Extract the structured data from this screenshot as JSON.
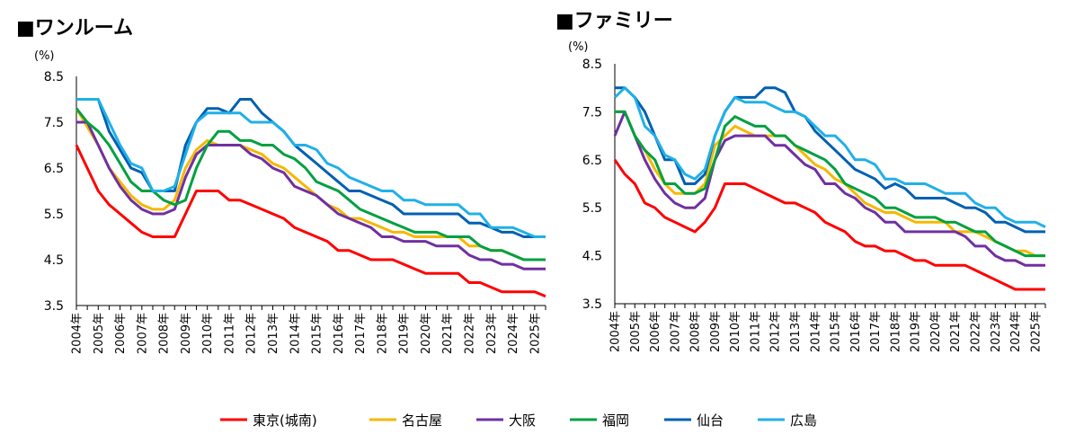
{
  "chart_data": [
    {
      "type": "line",
      "title": "■ワンルーム",
      "ylabel": "(%)",
      "ylim": [
        3.5,
        8.5
      ],
      "yticks": [
        "8.5",
        "7.5",
        "6.5",
        "5.5",
        "4.5",
        "3.5"
      ],
      "x_labels": [
        "2004年",
        "2005年",
        "2006年",
        "2007年",
        "2008年",
        "2009年",
        "2010年",
        "2011年",
        "2012年",
        "2013年",
        "2014年",
        "2015年",
        "2016年",
        "2017年",
        "2018年",
        "2019年",
        "2020年",
        "2021年",
        "2022年",
        "2023年",
        "2024年",
        "2025年"
      ],
      "x_start": 2004,
      "points_per_year": 2,
      "series": [
        {
          "name": "東京(城南)",
          "color": "#ff0000",
          "values": [
            7.0,
            6.5,
            6.0,
            5.7,
            5.5,
            5.3,
            5.1,
            5.0,
            5.0,
            5.0,
            5.5,
            6.0,
            6.0,
            6.0,
            5.8,
            5.8,
            5.7,
            5.6,
            5.5,
            5.4,
            5.2,
            5.1,
            5.0,
            4.9,
            4.7,
            4.7,
            4.6,
            4.5,
            4.5,
            4.5,
            4.4,
            4.3,
            4.2,
            4.2,
            4.2,
            4.2,
            4.0,
            4.0,
            3.9,
            3.8,
            3.8,
            3.8,
            3.8,
            3.7
          ]
        },
        {
          "name": "名古屋",
          "color": "#f5b800",
          "values": [
            7.8,
            7.4,
            7.0,
            6.5,
            6.2,
            5.9,
            5.7,
            5.6,
            5.6,
            5.8,
            6.5,
            6.9,
            7.1,
            7.0,
            7.0,
            7.0,
            6.9,
            6.8,
            6.6,
            6.5,
            6.3,
            6.1,
            5.9,
            5.7,
            5.6,
            5.4,
            5.4,
            5.3,
            5.2,
            5.1,
            5.1,
            5.0,
            5.0,
            5.0,
            5.0,
            5.0,
            4.8,
            4.8,
            4.7,
            4.7,
            4.6,
            4.5,
            4.5,
            4.5
          ]
        },
        {
          "name": "大阪",
          "color": "#7030a0",
          "values": [
            7.5,
            7.5,
            7.0,
            6.5,
            6.1,
            5.8,
            5.6,
            5.5,
            5.5,
            5.6,
            6.3,
            6.8,
            7.0,
            7.0,
            7.0,
            7.0,
            6.8,
            6.7,
            6.5,
            6.4,
            6.1,
            6.0,
            5.9,
            5.7,
            5.5,
            5.4,
            5.3,
            5.2,
            5.0,
            5.0,
            4.9,
            4.9,
            4.9,
            4.8,
            4.8,
            4.8,
            4.6,
            4.5,
            4.5,
            4.4,
            4.4,
            4.3,
            4.3,
            4.3
          ]
        },
        {
          "name": "福岡",
          "color": "#00a040",
          "values": [
            7.8,
            7.5,
            7.3,
            7.0,
            6.6,
            6.2,
            6.0,
            6.0,
            5.8,
            5.7,
            5.8,
            6.5,
            7.0,
            7.3,
            7.3,
            7.1,
            7.1,
            7.0,
            7.0,
            6.8,
            6.7,
            6.5,
            6.2,
            6.1,
            6.0,
            5.8,
            5.6,
            5.5,
            5.4,
            5.3,
            5.2,
            5.1,
            5.1,
            5.1,
            5.0,
            5.0,
            5.0,
            4.8,
            4.7,
            4.7,
            4.6,
            4.5,
            4.5,
            4.5
          ]
        },
        {
          "name": "仙台",
          "color": "#0060b0",
          "values": [
            8.0,
            8.0,
            8.0,
            7.3,
            6.9,
            6.5,
            6.4,
            6.0,
            6.0,
            6.0,
            7.0,
            7.5,
            7.8,
            7.8,
            7.7,
            8.0,
            8.0,
            7.7,
            7.5,
            7.3,
            7.0,
            6.8,
            6.6,
            6.4,
            6.2,
            6.0,
            6.0,
            5.9,
            5.8,
            5.7,
            5.5,
            5.5,
            5.5,
            5.5,
            5.5,
            5.5,
            5.3,
            5.3,
            5.2,
            5.1,
            5.1,
            5.0,
            5.0,
            5.0
          ]
        },
        {
          "name": "広島",
          "color": "#20b0e8",
          "values": [
            8.0,
            8.0,
            8.0,
            7.5,
            7.0,
            6.6,
            6.5,
            6.0,
            6.0,
            6.1,
            6.8,
            7.5,
            7.7,
            7.7,
            7.7,
            7.7,
            7.5,
            7.5,
            7.5,
            7.3,
            7.0,
            7.0,
            6.9,
            6.6,
            6.5,
            6.3,
            6.2,
            6.1,
            6.0,
            6.0,
            5.8,
            5.8,
            5.7,
            5.7,
            5.7,
            5.7,
            5.5,
            5.5,
            5.2,
            5.2,
            5.2,
            5.1,
            5.0,
            5.0
          ]
        }
      ]
    },
    {
      "type": "line",
      "title": "■ファミリー",
      "ylabel": "(%)",
      "ylim": [
        3.5,
        8.5
      ],
      "yticks": [
        "8.5",
        "7.5",
        "6.5",
        "5.5",
        "4.5",
        "3.5"
      ],
      "x_labels": [
        "2004年",
        "2005年",
        "2006年",
        "2007年",
        "2008年",
        "2009年",
        "2010年",
        "2011年",
        "2012年",
        "2013年",
        "2014年",
        "2015年",
        "2016年",
        "2017年",
        "2018年",
        "2019年",
        "2020年",
        "2021年",
        "2022年",
        "2023年",
        "2024年",
        "2025年"
      ],
      "x_start": 2004,
      "points_per_year": 2,
      "series": [
        {
          "name": "東京(城南)",
          "color": "#ff0000",
          "values": [
            6.5,
            6.2,
            6.0,
            5.6,
            5.5,
            5.3,
            5.2,
            5.1,
            5.0,
            5.2,
            5.5,
            6.0,
            6.0,
            6.0,
            5.9,
            5.8,
            5.7,
            5.6,
            5.6,
            5.5,
            5.4,
            5.2,
            5.1,
            5.0,
            4.8,
            4.7,
            4.7,
            4.6,
            4.6,
            4.5,
            4.4,
            4.4,
            4.3,
            4.3,
            4.3,
            4.3,
            4.2,
            4.1,
            4.0,
            3.9,
            3.8,
            3.8,
            3.8,
            3.8
          ]
        },
        {
          "name": "名古屋",
          "color": "#f5b800",
          "values": [
            7.5,
            7.5,
            7.0,
            6.7,
            6.3,
            6.0,
            5.8,
            5.8,
            5.8,
            6.0,
            6.8,
            7.0,
            7.2,
            7.1,
            7.0,
            7.0,
            7.0,
            7.0,
            6.8,
            6.6,
            6.4,
            6.3,
            6.1,
            6.0,
            5.8,
            5.6,
            5.5,
            5.4,
            5.4,
            5.3,
            5.2,
            5.2,
            5.2,
            5.2,
            5.0,
            5.0,
            5.0,
            4.9,
            4.8,
            4.7,
            4.6,
            4.6,
            4.5,
            4.5
          ]
        },
        {
          "name": "大阪",
          "color": "#7030a0",
          "values": [
            7.0,
            7.5,
            7.0,
            6.5,
            6.1,
            5.8,
            5.6,
            5.5,
            5.5,
            5.7,
            6.5,
            6.9,
            7.0,
            7.0,
            7.0,
            7.0,
            6.8,
            6.8,
            6.6,
            6.4,
            6.3,
            6.0,
            6.0,
            5.8,
            5.7,
            5.5,
            5.4,
            5.2,
            5.2,
            5.0,
            5.0,
            5.0,
            5.0,
            5.0,
            5.0,
            4.9,
            4.7,
            4.7,
            4.5,
            4.4,
            4.4,
            4.3,
            4.3,
            4.3
          ]
        },
        {
          "name": "福岡",
          "color": "#00a040",
          "values": [
            7.5,
            7.5,
            7.0,
            6.7,
            6.5,
            6.0,
            6.0,
            5.8,
            5.8,
            5.9,
            6.5,
            7.2,
            7.4,
            7.3,
            7.2,
            7.2,
            7.0,
            7.0,
            6.8,
            6.7,
            6.6,
            6.5,
            6.3,
            6.0,
            5.9,
            5.8,
            5.7,
            5.5,
            5.5,
            5.4,
            5.3,
            5.3,
            5.3,
            5.2,
            5.2,
            5.1,
            5.0,
            5.0,
            4.8,
            4.7,
            4.6,
            4.5,
            4.5,
            4.5
          ]
        },
        {
          "name": "仙台",
          "color": "#0060b0",
          "values": [
            8.0,
            8.0,
            7.8,
            7.5,
            7.0,
            6.5,
            6.5,
            6.0,
            6.0,
            6.2,
            7.0,
            7.5,
            7.8,
            7.8,
            7.8,
            8.0,
            8.0,
            7.9,
            7.5,
            7.4,
            7.1,
            6.9,
            6.7,
            6.5,
            6.3,
            6.2,
            6.1,
            5.9,
            6.0,
            5.9,
            5.7,
            5.7,
            5.7,
            5.7,
            5.6,
            5.5,
            5.5,
            5.4,
            5.2,
            5.2,
            5.1,
            5.0,
            5.0,
            5.0
          ]
        },
        {
          "name": "広島",
          "color": "#20b0e8",
          "values": [
            7.8,
            8.0,
            7.8,
            7.2,
            7.0,
            6.6,
            6.5,
            6.2,
            6.1,
            6.3,
            7.0,
            7.5,
            7.8,
            7.7,
            7.7,
            7.7,
            7.6,
            7.5,
            7.5,
            7.4,
            7.2,
            7.0,
            7.0,
            6.8,
            6.5,
            6.5,
            6.4,
            6.1,
            6.1,
            6.0,
            6.0,
            6.0,
            5.9,
            5.8,
            5.8,
            5.8,
            5.6,
            5.5,
            5.5,
            5.3,
            5.2,
            5.2,
            5.2,
            5.1
          ]
        }
      ]
    }
  ],
  "legend": [
    {
      "name": "東京(城南)",
      "color": "#ff0000"
    },
    {
      "name": "名古屋",
      "color": "#f5b800"
    },
    {
      "name": "大阪",
      "color": "#7030a0"
    },
    {
      "name": "福岡",
      "color": "#00a040"
    },
    {
      "name": "仙台",
      "color": "#0060b0"
    },
    {
      "name": "広島",
      "color": "#20b0e8"
    }
  ]
}
